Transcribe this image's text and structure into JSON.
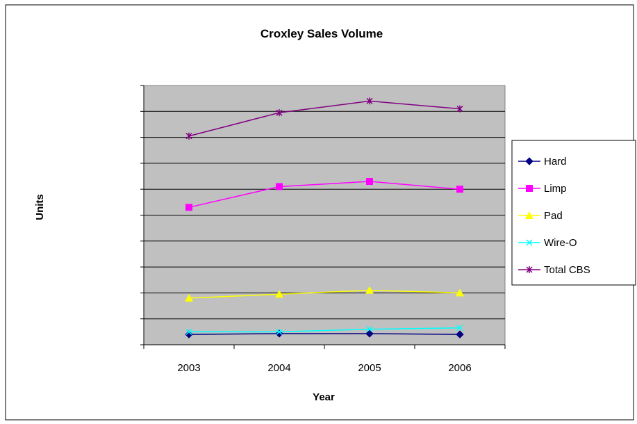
{
  "chart_data": {
    "type": "line",
    "title": "Croxley Sales Volume",
    "xlabel": "Year",
    "ylabel": "Units",
    "categories": [
      "2003",
      "2004",
      "2005",
      "2006"
    ],
    "ylim": [
      0,
      10
    ],
    "y_ticks": 10,
    "grid": true,
    "legend_position": "right",
    "plot_background": "#c0c0c0",
    "series": [
      {
        "name": "Hard",
        "values": [
          0.4,
          0.43,
          0.43,
          0.4
        ],
        "color": "#000080",
        "marker": "diamond"
      },
      {
        "name": "Limp",
        "values": [
          5.3,
          6.1,
          6.3,
          6.0
        ],
        "color": "#ff00ff",
        "marker": "square"
      },
      {
        "name": "Pad",
        "values": [
          1.8,
          1.95,
          2.1,
          2.0
        ],
        "color": "#ffff00",
        "marker": "triangle"
      },
      {
        "name": "Wire-O",
        "values": [
          0.5,
          0.5,
          0.6,
          0.65
        ],
        "color": "#00ffff",
        "marker": "x"
      },
      {
        "name": "Total CBS",
        "values": [
          8.05,
          8.95,
          9.4,
          9.1
        ],
        "color": "#800080",
        "marker": "star"
      }
    ]
  }
}
